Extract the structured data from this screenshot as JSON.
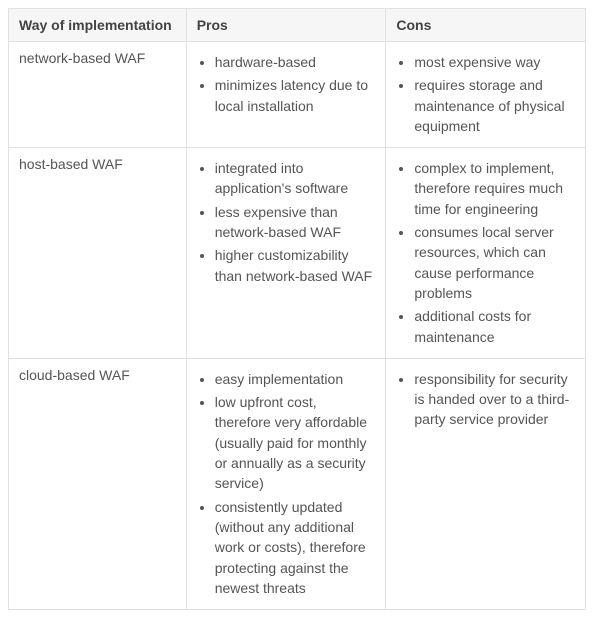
{
  "table": {
    "columns": [
      "Way of implementation",
      "Pros",
      "Cons"
    ],
    "rows": [
      {
        "way": "network-based WAF",
        "pros": [
          "hardware-based",
          "minimizes latency due to local installation"
        ],
        "cons": [
          "most expensive way",
          "requires storage and maintenance of physical equipment"
        ]
      },
      {
        "way": "host-based WAF",
        "pros": [
          "integrated into application's software",
          "less expensive than network-based WAF",
          "higher customizability than network-based WAF"
        ],
        "cons": [
          "complex to implement, therefore requires much time for engineering",
          "consumes local server resources, which can cause performance problems",
          "additional costs for maintenance"
        ]
      },
      {
        "way": "cloud-based WAF",
        "pros": [
          "easy implementation",
          "low upfront cost, therefore very affordable (usually paid for monthly or annually as a security service)",
          "consistently updated (without any additional work or costs), therefore protecting against the newest threats"
        ],
        "cons": [
          "responsibility for security is handed over to a third-party service provider"
        ]
      }
    ],
    "styling": {
      "header_bg": "#f6f6f6",
      "border_color": "#e1e1e1",
      "font_size": 14,
      "header_font_weight": 600,
      "text_color": "#555",
      "header_text_color": "#434343"
    }
  }
}
